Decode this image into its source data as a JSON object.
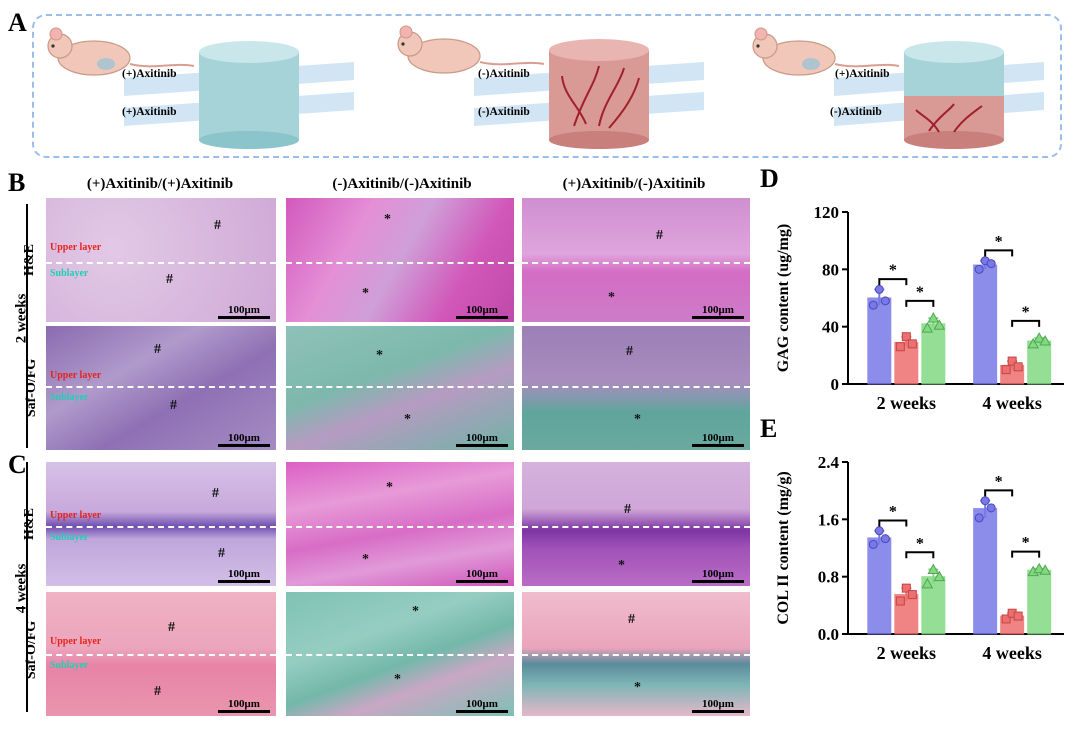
{
  "panels": {
    "A": "A",
    "B": "B",
    "C": "C",
    "D": "D",
    "E": "E"
  },
  "panelA": {
    "groups": [
      {
        "upper": "(+)Axitinib",
        "lower": "(+)Axitinib",
        "upper_color": "#a6d3d8",
        "lower_color": "#a6d3d8"
      },
      {
        "upper": "(-)Axitinib",
        "lower": "(-)Axitinib",
        "upper_color": "#d99a95",
        "lower_color": "#d99a95"
      },
      {
        "upper": "(+)Axitinib",
        "lower": "(-)Axitinib",
        "upper_color": "#a6d3d8",
        "lower_color": "#d99a95"
      }
    ]
  },
  "columns": [
    "(+)Axitinib/(+)Axitinib",
    "(-)Axitinib/(-)Axitinib",
    "(+)Axitinib/(-)Axitinib"
  ],
  "timepoints": {
    "b": "2 weeks",
    "c": "4 weeks"
  },
  "stains": {
    "he": "H&E",
    "saf": "Saf-O/FG"
  },
  "layer_labels": {
    "upper": "Upper layer",
    "sub": "Sublayer"
  },
  "marks": {
    "hash": "#",
    "star": "*"
  },
  "scale_bar": "100μm",
  "colors": {
    "he_bg": "#d9b7dc",
    "he_purple": "#b985c6",
    "he_pink": "#e08fd2",
    "he_magenta": "#cf52b6",
    "saf_purple": "#9a78b5",
    "saf_cyan": "#6fb7a8",
    "saf_pink": "#e88aa6",
    "saf_red": "#c23b69",
    "bar_blue": "#7878e8",
    "bar_red": "#ee6f6f",
    "bar_green": "#83d983"
  },
  "chart_data": [
    {
      "type": "bar",
      "panel": "D",
      "ylabel": "GAG content (ug/mg)",
      "categories": [
        "2 weeks",
        "4 weeks"
      ],
      "ylim": [
        0,
        120
      ],
      "yticks": [
        0,
        40,
        80,
        120
      ],
      "series": [
        {
          "values": [
            60,
            83
          ],
          "color": "#7878e8",
          "points": [
            [
              55,
              66,
              58
            ],
            [
              80,
              86,
              84
            ]
          ]
        },
        {
          "values": [
            29,
            13
          ],
          "color": "#ee6f6f",
          "points": [
            [
              26,
              33,
              28
            ],
            [
              10,
              16,
              12
            ]
          ]
        },
        {
          "values": [
            42,
            30
          ],
          "color": "#83d983",
          "points": [
            [
              39,
              46,
              41
            ],
            [
              28,
              32,
              30
            ]
          ]
        }
      ],
      "significance": [
        "*",
        "*",
        "*",
        "*"
      ]
    },
    {
      "type": "bar",
      "panel": "E",
      "ylabel": "COL II content (mg/g)",
      "categories": [
        "2 weeks",
        "4 weeks"
      ],
      "ylim": [
        0,
        2.4
      ],
      "yticks": [
        "0.0",
        "0.8",
        "1.6",
        "2.4"
      ],
      "series": [
        {
          "values": [
            1.34,
            1.75
          ],
          "color": "#7878e8",
          "points": [
            [
              1.25,
              1.44,
              1.33
            ],
            [
              1.62,
              1.86,
              1.76
            ]
          ]
        },
        {
          "values": [
            0.55,
            0.25
          ],
          "color": "#ee6f6f",
          "points": [
            [
              0.46,
              0.64,
              0.55
            ],
            [
              0.21,
              0.29,
              0.25
            ]
          ]
        },
        {
          "values": [
            0.8,
            0.89
          ],
          "color": "#83d983",
          "points": [
            [
              0.7,
              0.9,
              0.8
            ],
            [
              0.87,
              0.91,
              0.89
            ]
          ]
        }
      ],
      "significance": [
        "*",
        "*",
        "*",
        "*"
      ]
    }
  ]
}
